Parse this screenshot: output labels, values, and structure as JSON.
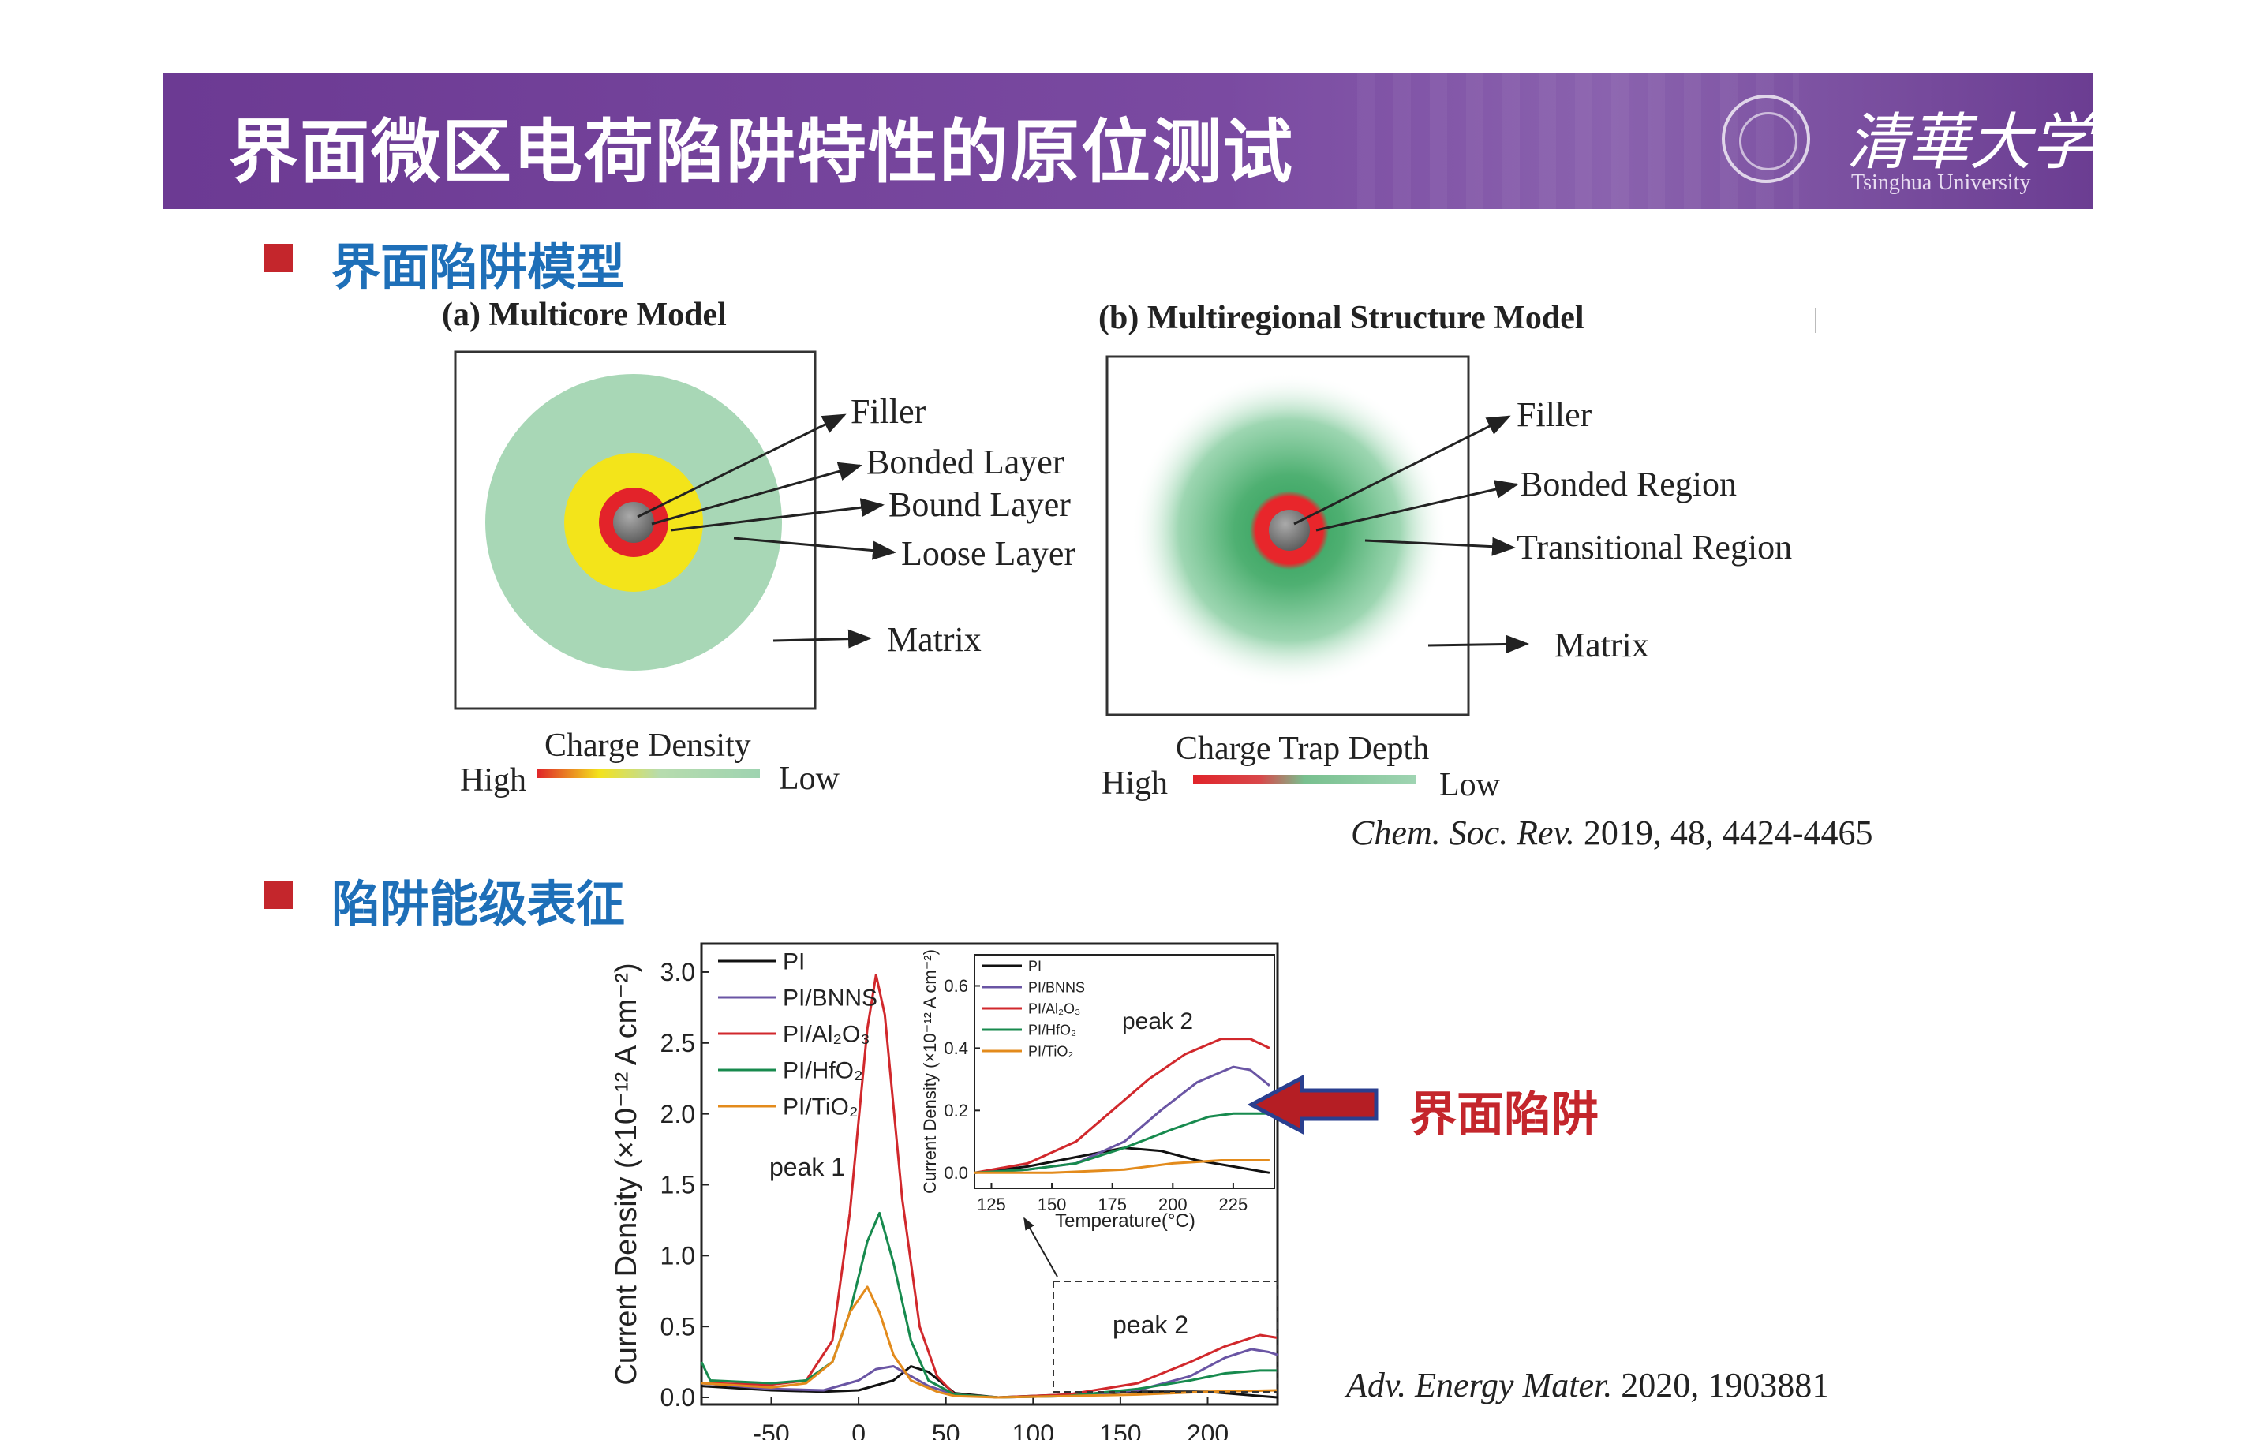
{
  "header": {
    "title": "界面微区电荷陷阱特性的原位测试",
    "university_cn": "清華大学",
    "university_en": "Tsinghua University"
  },
  "section1": {
    "title": "界面陷阱模型"
  },
  "model_a": {
    "title": "(a) Multicore Model",
    "labels": {
      "filler": "Filler",
      "bonded": "Bonded Layer",
      "bound": "Bound Layer",
      "loose": "Loose Layer",
      "matrix": "Matrix"
    },
    "scale_title": "Charge Density",
    "scale_high": "High",
    "scale_low": "Low"
  },
  "model_b": {
    "title": "(b) Multiregional Structure Model",
    "labels": {
      "filler": "Filler",
      "bonded": "Bonded Region",
      "transitional": "Transitional Region",
      "matrix": "Matrix"
    },
    "scale_title": "Charge Trap Depth",
    "scale_high": "High",
    "scale_low": "Low"
  },
  "citation1": {
    "journal": "Chem. Soc. Rev.",
    "rest": " 2019, 48, 4424-4465"
  },
  "section2": {
    "title": "陷阱能级表征"
  },
  "annotation": {
    "label": "界面陷阱"
  },
  "citation2": {
    "journal": "Adv. Energy Mater.",
    "rest": " 2020, 1903881"
  },
  "chart_data": [
    {
      "type": "line",
      "ylabel": "Current Density (×10⁻¹² A cm⁻²)",
      "xlim": [
        -90,
        240
      ],
      "ylim": [
        -0.05,
        3.2
      ],
      "xticks": [
        "-50",
        "0",
        "50",
        "100",
        "150",
        "200"
      ],
      "yticks": [
        "0.0",
        "0.5",
        "1.0",
        "1.5",
        "2.0",
        "2.5",
        "3.0"
      ],
      "annotations": [
        "peak 1",
        "peak 2"
      ],
      "legend": [
        "PI",
        "PI/BNNS",
        "PI/Al₂O₃",
        "PI/HfO₂",
        "PI/TiO₂"
      ],
      "series": [
        {
          "name": "PI",
          "color": "#111111",
          "x": [
            -90,
            -50,
            -20,
            0,
            20,
            30,
            40,
            55,
            80,
            120,
            160,
            200,
            230,
            240
          ],
          "y": [
            0.08,
            0.05,
            0.04,
            0.05,
            0.12,
            0.22,
            0.18,
            0.03,
            0.0,
            0.02,
            0.04,
            0.04,
            0.01,
            0.0
          ]
        },
        {
          "name": "PI/BNNS",
          "color": "#6a55a4",
          "x": [
            -90,
            -50,
            -20,
            0,
            10,
            20,
            30,
            40,
            55,
            80,
            120,
            160,
            190,
            210,
            225,
            235,
            240
          ],
          "y": [
            0.1,
            0.06,
            0.05,
            0.12,
            0.2,
            0.22,
            0.15,
            0.08,
            0.02,
            0.0,
            0.01,
            0.05,
            0.15,
            0.28,
            0.34,
            0.32,
            0.3
          ]
        },
        {
          "name": "PI/Al₂O₃",
          "color": "#d1282c",
          "x": [
            -90,
            -50,
            -30,
            -15,
            -5,
            5,
            10,
            15,
            25,
            35,
            45,
            55,
            80,
            120,
            160,
            190,
            210,
            230,
            240
          ],
          "y": [
            0.1,
            0.09,
            0.12,
            0.4,
            1.3,
            2.6,
            2.98,
            2.7,
            1.4,
            0.5,
            0.15,
            0.02,
            0.0,
            0.02,
            0.1,
            0.25,
            0.36,
            0.44,
            0.42
          ]
        },
        {
          "name": "PI/HfO₂",
          "color": "#178a4e",
          "x": [
            -90,
            -85,
            -50,
            -30,
            -15,
            -5,
            5,
            12,
            20,
            30,
            40,
            55,
            80,
            120,
            160,
            190,
            210,
            230,
            240
          ],
          "y": [
            0.25,
            0.12,
            0.1,
            0.12,
            0.25,
            0.6,
            1.1,
            1.3,
            0.95,
            0.4,
            0.12,
            0.02,
            0.0,
            0.01,
            0.06,
            0.12,
            0.17,
            0.19,
            0.19
          ]
        },
        {
          "name": "PI/TiO₂",
          "color": "#e38b1c",
          "x": [
            -90,
            -50,
            -30,
            -15,
            -5,
            5,
            12,
            20,
            30,
            45,
            55,
            80,
            120,
            160,
            200,
            240
          ],
          "y": [
            0.1,
            0.07,
            0.1,
            0.25,
            0.6,
            0.78,
            0.6,
            0.3,
            0.12,
            0.04,
            0.01,
            0.0,
            0.01,
            0.02,
            0.04,
            0.05
          ]
        }
      ]
    },
    {
      "type": "line",
      "title": "peak 2",
      "xlabel": "Temperature(°C)",
      "ylabel": "Current Density (×10⁻¹² A cm⁻²)",
      "xlim": [
        118,
        242
      ],
      "ylim": [
        -0.05,
        0.7
      ],
      "xticks": [
        "125",
        "150",
        "175",
        "200",
        "225"
      ],
      "yticks": [
        "0.0",
        "0.2",
        "0.4",
        "0.6"
      ],
      "legend": [
        "PI",
        "PI/BNNS",
        "PI/Al₂O₃",
        "PI/HfO₂",
        "PI/TiO₂"
      ],
      "series": [
        {
          "name": "PI",
          "color": "#111111",
          "x": [
            118,
            140,
            160,
            180,
            195,
            210,
            225,
            240
          ],
          "y": [
            0.0,
            0.02,
            0.05,
            0.08,
            0.07,
            0.04,
            0.02,
            0.0
          ]
        },
        {
          "name": "PI/BNNS",
          "color": "#6a55a4",
          "x": [
            118,
            140,
            160,
            180,
            195,
            210,
            225,
            232,
            240
          ],
          "y": [
            0.0,
            0.01,
            0.03,
            0.1,
            0.2,
            0.29,
            0.34,
            0.33,
            0.28
          ]
        },
        {
          "name": "PI/Al₂O₃",
          "color": "#d1282c",
          "x": [
            118,
            140,
            160,
            175,
            190,
            205,
            220,
            232,
            240
          ],
          "y": [
            0.0,
            0.03,
            0.1,
            0.2,
            0.3,
            0.38,
            0.43,
            0.43,
            0.4
          ]
        },
        {
          "name": "PI/HfO₂",
          "color": "#178a4e",
          "x": [
            118,
            140,
            160,
            180,
            200,
            215,
            225,
            240
          ],
          "y": [
            0.0,
            0.01,
            0.03,
            0.08,
            0.14,
            0.18,
            0.19,
            0.19
          ]
        },
        {
          "name": "PI/TiO₂",
          "color": "#e38b1c",
          "x": [
            118,
            150,
            180,
            200,
            220,
            240
          ],
          "y": [
            0.0,
            0.0,
            0.01,
            0.03,
            0.04,
            0.04
          ]
        }
      ]
    }
  ]
}
